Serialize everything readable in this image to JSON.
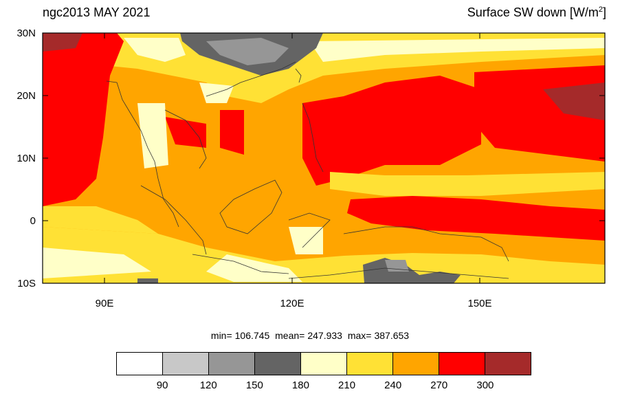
{
  "title_left": "ngc2013 MAY 2021",
  "title_right": {
    "text": "Surface SW down [W/m",
    "sup": "2",
    "close": "]"
  },
  "axes": {
    "lat_labels": [
      "30N",
      "20N",
      "10N",
      "0",
      "10S"
    ],
    "lon_labels": [
      "90E",
      "120E",
      "150E"
    ]
  },
  "stats": {
    "min_label": "min=",
    "min": "106.745",
    "mean_label": "mean=",
    "mean": "247.933",
    "max_label": "max=",
    "max": "387.653"
  },
  "colorbar": {
    "colors": [
      "#ffffff",
      "#c8c8c8",
      "#969696",
      "#646464",
      "#ffffc8",
      "#ffe135",
      "#ffa500",
      "#ff0000",
      "#a52a2a"
    ],
    "labels": [
      "90",
      "120",
      "150",
      "180",
      "210",
      "240",
      "270",
      "300"
    ]
  },
  "chart_data": {
    "type": "heatmap",
    "variable": "Surface SW down",
    "units": "W/m2",
    "lat_range": [
      -10,
      30
    ],
    "lon_range": [
      80,
      170
    ],
    "levels": [
      90,
      120,
      150,
      180,
      210,
      240,
      270,
      300
    ],
    "min": 106.745,
    "mean": 247.933,
    "max": 387.653
  }
}
